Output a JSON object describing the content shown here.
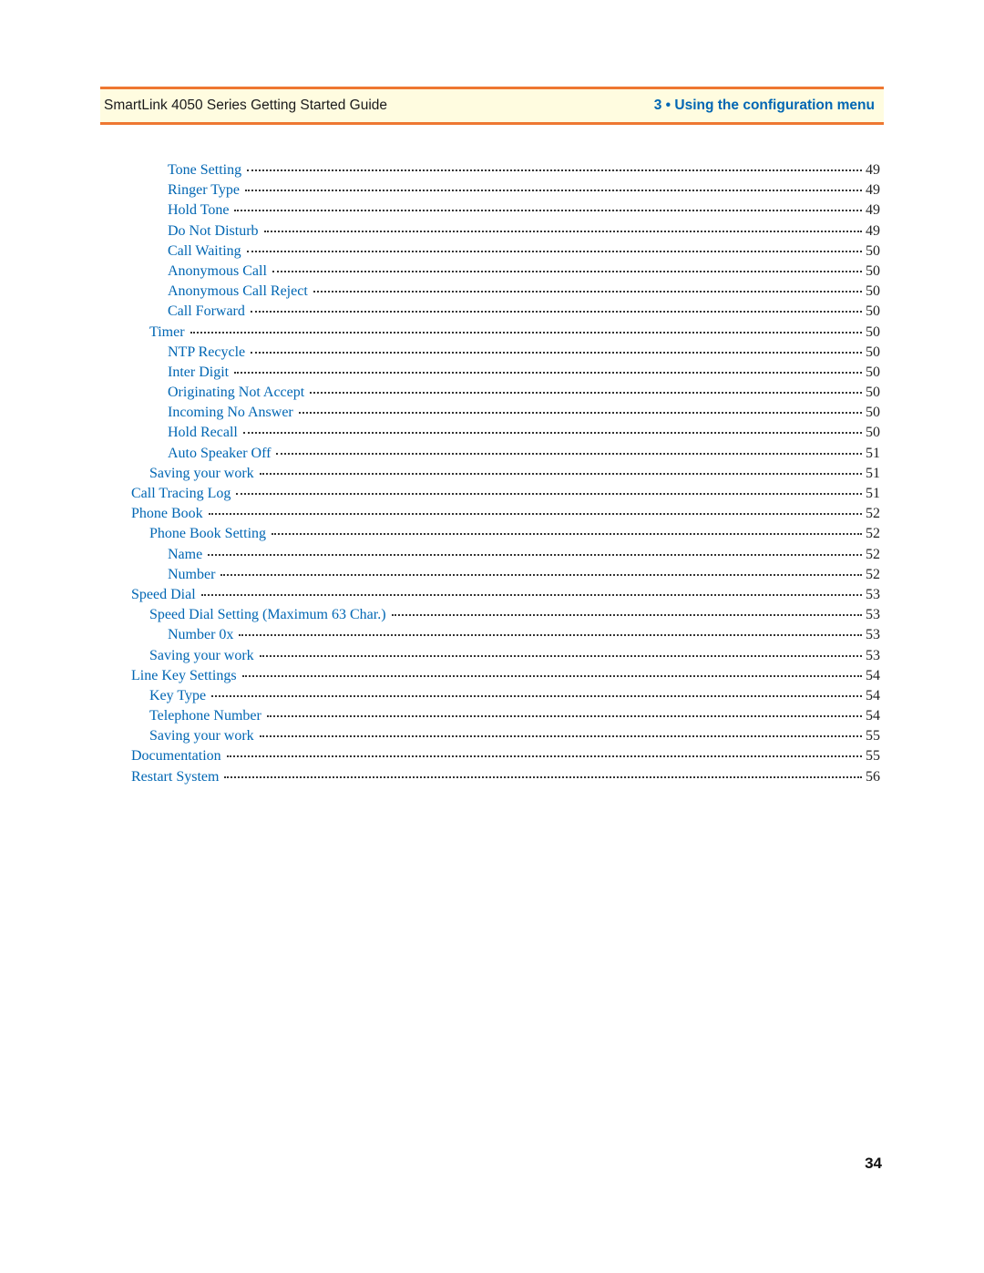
{
  "header": {
    "left": "SmartLink 4050 Series Getting Started Guide",
    "right": "3 • Using the configuration menu"
  },
  "colors": {
    "accent_orange": "#ee7731",
    "header_bg": "#fffce0",
    "link_blue": "#0066b3",
    "text_dark": "#222222"
  },
  "toc": [
    {
      "label": "Tone Setting",
      "page": "49",
      "indent": 2
    },
    {
      "label": "Ringer Type",
      "page": "49",
      "indent": 2
    },
    {
      "label": "Hold Tone",
      "page": "49",
      "indent": 2
    },
    {
      "label": "Do Not Disturb",
      "page": "49",
      "indent": 2
    },
    {
      "label": "Call Waiting",
      "page": "50",
      "indent": 2
    },
    {
      "label": "Anonymous Call",
      "page": "50",
      "indent": 2
    },
    {
      "label": "Anonymous Call Reject",
      "page": "50",
      "indent": 2
    },
    {
      "label": "Call Forward",
      "page": "50",
      "indent": 2
    },
    {
      "label": "Timer",
      "page": "50",
      "indent": 1
    },
    {
      "label": "NTP Recycle",
      "page": "50",
      "indent": 2
    },
    {
      "label": "Inter Digit",
      "page": "50",
      "indent": 2
    },
    {
      "label": "Originating Not Accept",
      "page": "50",
      "indent": 2
    },
    {
      "label": "Incoming No Answer",
      "page": "50",
      "indent": 2
    },
    {
      "label": "Hold Recall",
      "page": "50",
      "indent": 2
    },
    {
      "label": "Auto Speaker Off",
      "page": "51",
      "indent": 2
    },
    {
      "label": "Saving your work",
      "page": "51",
      "indent": 1
    },
    {
      "label": "Call Tracing Log",
      "page": "51",
      "indent": 0
    },
    {
      "label": "Phone Book",
      "page": "52",
      "indent": 0
    },
    {
      "label": "Phone Book Setting",
      "page": "52",
      "indent": 1
    },
    {
      "label": "Name",
      "page": "52",
      "indent": 2
    },
    {
      "label": "Number",
      "page": "52",
      "indent": 2
    },
    {
      "label": "Speed Dial",
      "page": "53",
      "indent": 0
    },
    {
      "label": "Speed Dial Setting (Maximum 63 Char.)",
      "page": "53",
      "indent": 1
    },
    {
      "label": "Number 0x",
      "page": "53",
      "indent": 2
    },
    {
      "label": "Saving your work",
      "page": "53",
      "indent": 1
    },
    {
      "label": "Line Key Settings",
      "page": "54",
      "indent": 0
    },
    {
      "label": "Key Type",
      "page": "54",
      "indent": 1
    },
    {
      "label": "Telephone Number",
      "page": "54",
      "indent": 1
    },
    {
      "label": "Saving your work",
      "page": "55",
      "indent": 1
    },
    {
      "label": "Documentation",
      "page": "55",
      "indent": 0
    },
    {
      "label": "Restart System",
      "page": "56",
      "indent": 0
    }
  ],
  "page_number": "34"
}
